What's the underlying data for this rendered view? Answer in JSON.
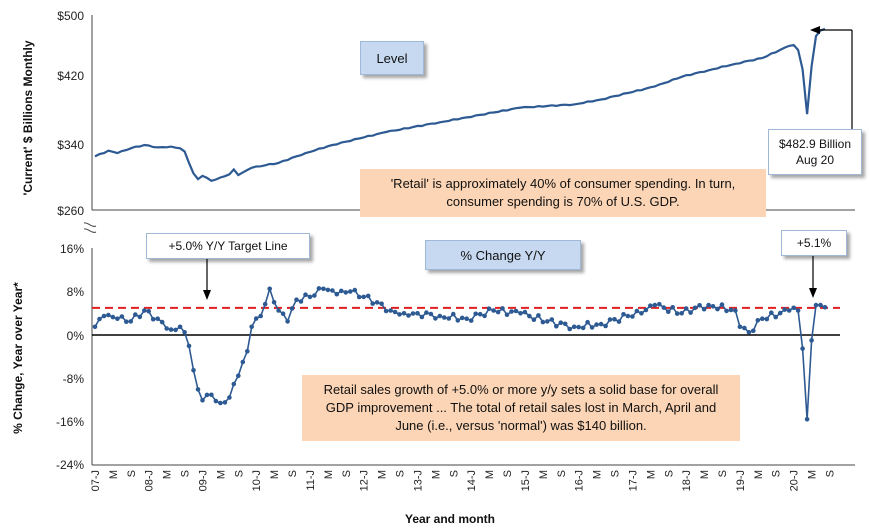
{
  "chart_data": [
    {
      "type": "line",
      "title": "Level",
      "ylabel": "'Current' $ Billions Monthly",
      "ylim": [
        260,
        500
      ],
      "yticks": [
        "$260",
        "$340",
        "$420",
        "$500"
      ],
      "start": "2007-01",
      "end": "2020-08",
      "anchors": [
        [
          "2007-01",
          326
        ],
        [
          "2007-04",
          333
        ],
        [
          "2007-06",
          330
        ],
        [
          "2007-09",
          336
        ],
        [
          "2007-12",
          340
        ],
        [
          "2008-03",
          337
        ],
        [
          "2008-06",
          338
        ],
        [
          "2008-08",
          336
        ],
        [
          "2008-09",
          332
        ],
        [
          "2008-10",
          318
        ],
        [
          "2008-11",
          305
        ],
        [
          "2008-12",
          298
        ],
        [
          "2009-01",
          302
        ],
        [
          "2009-03",
          296
        ],
        [
          "2009-05",
          300
        ],
        [
          "2009-07",
          304
        ],
        [
          "2009-08",
          310
        ],
        [
          "2009-09",
          303
        ],
        [
          "2009-12",
          312
        ],
        [
          "2010-03",
          315
        ],
        [
          "2010-06",
          318
        ],
        [
          "2010-12",
          330
        ],
        [
          "2011-06",
          340
        ],
        [
          "2011-12",
          348
        ],
        [
          "2012-06",
          356
        ],
        [
          "2012-12",
          362
        ],
        [
          "2013-06",
          368
        ],
        [
          "2013-12",
          374
        ],
        [
          "2014-06",
          380
        ],
        [
          "2014-12",
          386
        ],
        [
          "2015-06",
          388
        ],
        [
          "2015-12",
          390
        ],
        [
          "2016-06",
          396
        ],
        [
          "2016-12",
          404
        ],
        [
          "2017-06",
          412
        ],
        [
          "2017-12",
          424
        ],
        [
          "2018-06",
          432
        ],
        [
          "2018-12",
          440
        ],
        [
          "2019-06",
          447
        ],
        [
          "2019-12",
          462
        ],
        [
          "2020-01",
          463
        ],
        [
          "2020-02",
          457
        ],
        [
          "2020-03",
          433
        ],
        [
          "2020-04",
          378
        ],
        [
          "2020-05",
          437
        ],
        [
          "2020-06",
          474
        ],
        [
          "2020-07",
          481
        ],
        [
          "2020-08",
          482.9
        ]
      ]
    },
    {
      "type": "line",
      "title": "% Change Y/Y",
      "ylabel": "% Change, Year over Year*",
      "ylim": [
        -24,
        16
      ],
      "yticks": [
        "16%",
        "8%",
        "0%",
        "-8%",
        "-16%",
        "-24%"
      ],
      "start": "2007-01",
      "end": "2020-08",
      "target_line": 5.0,
      "anchors": [
        [
          "2007-01",
          1.5
        ],
        [
          "2007-03",
          3.5
        ],
        [
          "2007-06",
          3.0
        ],
        [
          "2007-09",
          2.5
        ],
        [
          "2007-12",
          4.5
        ],
        [
          "2008-03",
          3.0
        ],
        [
          "2008-06",
          1.0
        ],
        [
          "2008-08",
          1.5
        ],
        [
          "2008-09",
          0.5
        ],
        [
          "2008-10",
          -2.0
        ],
        [
          "2008-11",
          -6.5
        ],
        [
          "2008-12",
          -10.0
        ],
        [
          "2009-01",
          -12.0
        ],
        [
          "2009-03",
          -11.0
        ],
        [
          "2009-05",
          -12.5
        ],
        [
          "2009-07",
          -11.5
        ],
        [
          "2009-09",
          -7.5
        ],
        [
          "2009-11",
          -3.0
        ],
        [
          "2009-12",
          1.5
        ],
        [
          "2010-02",
          3.5
        ],
        [
          "2010-04",
          8.5
        ],
        [
          "2010-06",
          4.5
        ],
        [
          "2010-08",
          2.5
        ],
        [
          "2010-10",
          6.5
        ],
        [
          "2011-01",
          7.0
        ],
        [
          "2011-04",
          8.5
        ],
        [
          "2011-07",
          7.5
        ],
        [
          "2011-10",
          8.0
        ],
        [
          "2012-01",
          7.0
        ],
        [
          "2012-04",
          6.0
        ],
        [
          "2012-07",
          4.5
        ],
        [
          "2012-10",
          4.0
        ],
        [
          "2013-01",
          4.0
        ],
        [
          "2013-06",
          3.5
        ],
        [
          "2013-12",
          3.0
        ],
        [
          "2014-06",
          4.5
        ],
        [
          "2014-12",
          4.0
        ],
        [
          "2015-06",
          2.5
        ],
        [
          "2015-12",
          1.5
        ],
        [
          "2016-06",
          2.0
        ],
        [
          "2016-12",
          3.5
        ],
        [
          "2017-03",
          4.0
        ],
        [
          "2017-06",
          5.5
        ],
        [
          "2017-12",
          4.0
        ],
        [
          "2018-03",
          5.0
        ],
        [
          "2018-06",
          5.5
        ],
        [
          "2018-12",
          4.5
        ],
        [
          "2019-01",
          1.5
        ],
        [
          "2019-03",
          0.5
        ],
        [
          "2019-06",
          3.0
        ],
        [
          "2019-12",
          4.5
        ],
        [
          "2020-01",
          5.0
        ],
        [
          "2020-02",
          4.5
        ],
        [
          "2020-03",
          -2.5
        ],
        [
          "2020-04",
          -15.5
        ],
        [
          "2020-05",
          -1.0
        ],
        [
          "2020-06",
          5.5
        ],
        [
          "2020-07",
          5.5
        ],
        [
          "2020-08",
          5.1
        ]
      ]
    }
  ],
  "x_axis": {
    "label": "Year and month",
    "tick_labels": [
      "07-J",
      "M",
      "S",
      "08-J",
      "M",
      "S",
      "09-J",
      "M",
      "S",
      "10-J",
      "M",
      "S",
      "11-J",
      "M",
      "S",
      "12-J",
      "M",
      "S",
      "13-J",
      "M",
      "S",
      "14-J",
      "M",
      "S",
      "15-J",
      "M",
      "S",
      "16-J",
      "M",
      "S",
      "17-J",
      "M",
      "S",
      "18-J",
      "M",
      "S",
      "19-J",
      "M",
      "S",
      "20-J",
      "M",
      "S"
    ]
  },
  "annotations": {
    "level_label": "Level",
    "change_label": "% Change Y/Y",
    "latest_value_line1": "$482.9 Billion",
    "latest_value_line2": "Aug 20",
    "target_label": "+5.0% Y/Y Target Line",
    "latest_pct": "+5.1%",
    "retail_note": "'Retail' is approximately 40% of consumer spending. In turn, consumer spending is 70% of U.S. GDP.",
    "growth_note": "Retail sales growth of +5.0% or more y/y sets a solid base for overall GDP improvement ... The total of retail sales lost in March, April and June (i.e., versus 'normal') was $140 billion."
  },
  "colors": {
    "line": "#2e5a93",
    "marker": "#2e5a93",
    "target": "#e02020",
    "zero_line": "#000000",
    "label_box": "#c6d9f1",
    "note_box": "#fbd5b5"
  }
}
